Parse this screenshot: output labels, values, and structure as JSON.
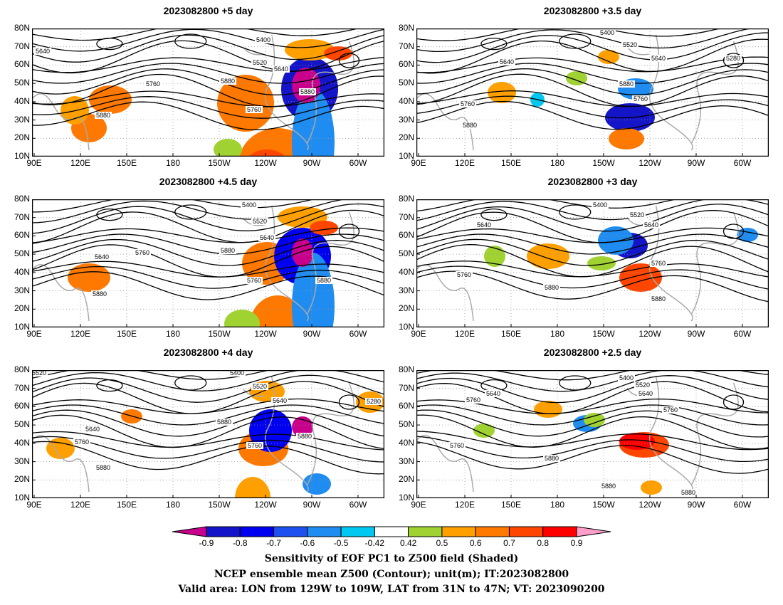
{
  "panels": [
    {
      "title": "2023082800  +5 day"
    },
    {
      "title": "2023082800  +3.5 day"
    },
    {
      "title": "2023082800  +4.5 day"
    },
    {
      "title": "2023082800  +3 day"
    },
    {
      "title": "2023082800  +4 day"
    },
    {
      "title": "2023082800  +2.5 day"
    }
  ],
  "lat_labels": [
    "80N",
    "70N",
    "60N",
    "50N",
    "40N",
    "30N",
    "20N",
    "10N"
  ],
  "lon_labels": [
    "90E",
    "120E",
    "150E",
    "180",
    "150W",
    "120W",
    "90W",
    "60W"
  ],
  "contour_labels": [
    "5400",
    "5520",
    "5640",
    "5760",
    "5880",
    "5280"
  ],
  "colorbar": {
    "labels": [
      "-0.9",
      "-0.8",
      "-0.7",
      "-0.6",
      "-0.5",
      "-0.42",
      "0.42",
      "0.5",
      "0.6",
      "0.7",
      "0.8",
      "0.9"
    ],
    "colors": [
      "#c8008c",
      "#1414c8",
      "#0000f0",
      "#1e50f0",
      "#1e8cf0",
      "#00c8f0",
      "#ffffff",
      "#a0d232",
      "#ffa000",
      "#ff7800",
      "#ff4600",
      "#ff0000",
      "#ff9ec8"
    ]
  },
  "caption": [
    "Sensitivity of EOF PC1 to Z500 field (Shaded)",
    "NCEP ensemble mean Z500 (Contour); unit(m); IT:2023082800",
    "Valid area: LON from 129W to 109W, LAT from 31N to 47N; VT: 2023090200"
  ]
}
